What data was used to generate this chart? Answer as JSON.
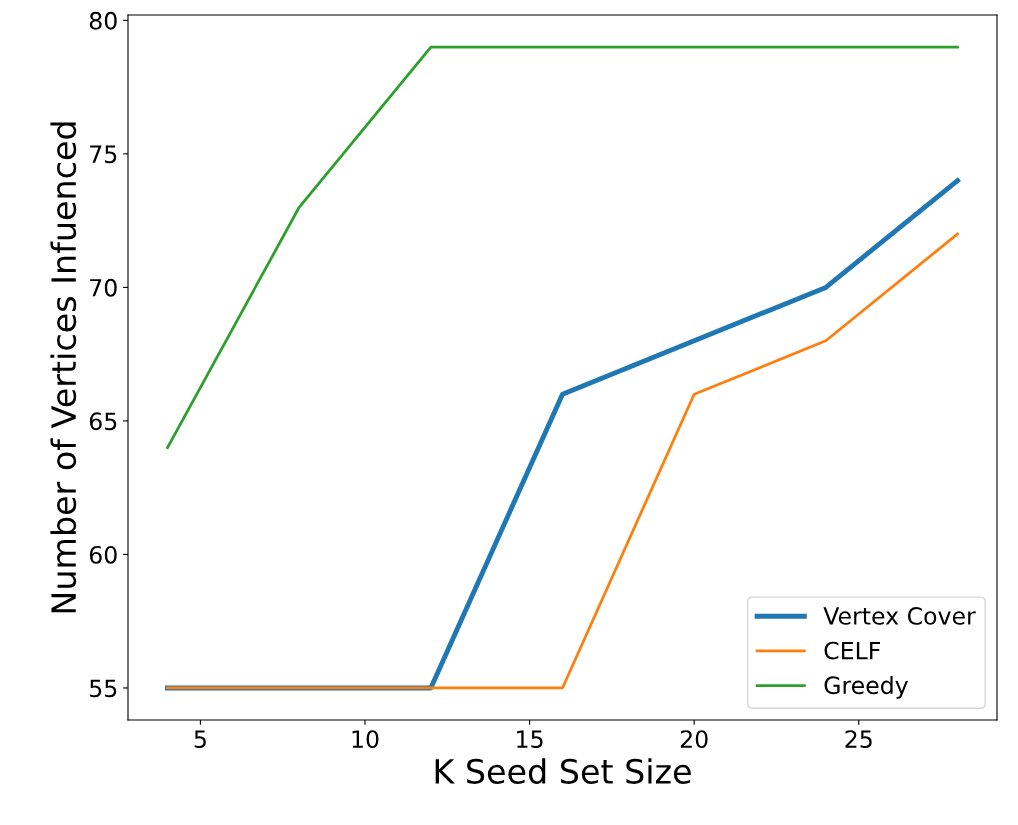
{
  "chart_data": {
    "type": "line",
    "xlabel": "K Seed Set Size",
    "ylabel": "Number of Vertices Infuenced",
    "x": [
      4,
      8,
      12,
      16,
      20,
      24,
      28
    ],
    "series": [
      {
        "name": "Vertex Cover",
        "color": "#1f77b4",
        "values": [
          55,
          55,
          55,
          66,
          68,
          70,
          74
        ]
      },
      {
        "name": "CELF",
        "color": "#ff7f0e",
        "values": [
          55,
          55,
          55,
          55,
          66,
          68,
          72
        ]
      },
      {
        "name": "Greedy",
        "color": "#2ca02c",
        "values": [
          64,
          73,
          79,
          79,
          79,
          79,
          79
        ]
      }
    ],
    "xlim": [
      2.8,
      29.2
    ],
    "ylim": [
      53.8,
      80.2
    ],
    "xticks": [
      5,
      10,
      15,
      20,
      25
    ],
    "yticks": [
      55,
      60,
      65,
      70,
      75,
      80
    ],
    "legend": "bottom right",
    "grid": false
  }
}
